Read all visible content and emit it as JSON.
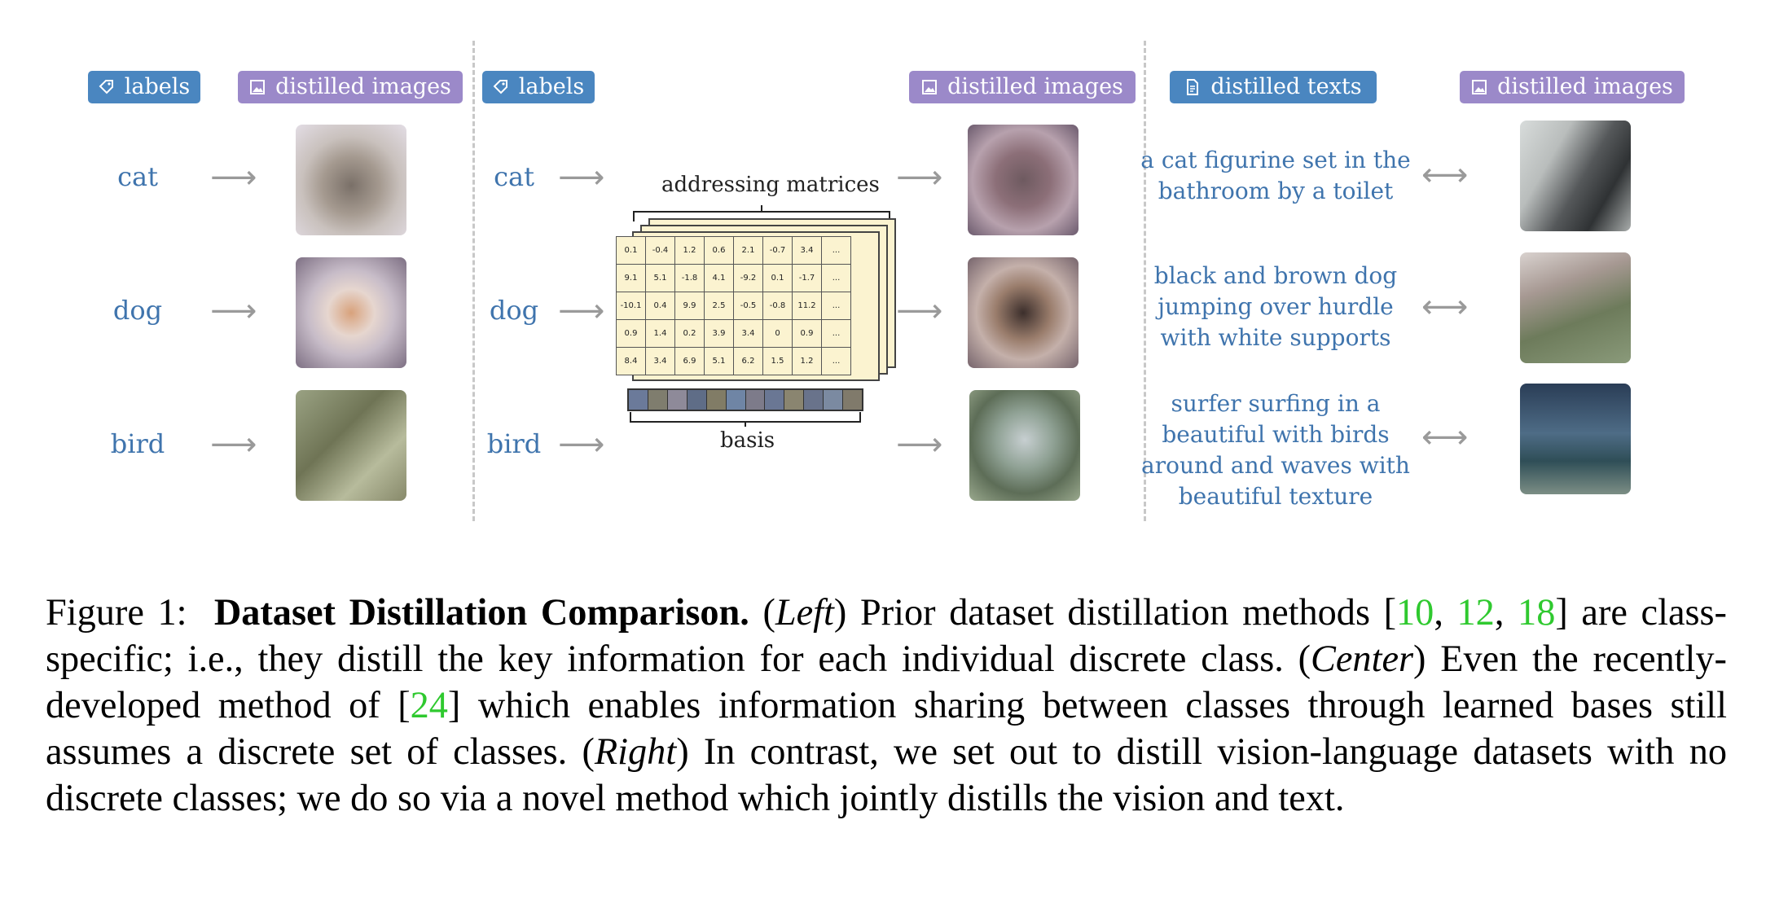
{
  "figure": {
    "left": {
      "labels_badge": "labels",
      "images_badge": "distilled images",
      "classes": [
        "cat",
        "dog",
        "bird"
      ]
    },
    "center": {
      "labels_badge": "labels",
      "images_badge": "distilled images",
      "classes": [
        "cat",
        "dog",
        "bird"
      ],
      "addressing_label": "addressing matrices",
      "basis_label": "basis",
      "matrix": [
        [
          "0.1",
          "-0.4",
          "1.2",
          "0.6",
          "2.1",
          "-0.7",
          "3.4",
          "..."
        ],
        [
          "9.1",
          "5.1",
          "-1.8",
          "4.1",
          "-9.2",
          "0.1",
          "-1.7",
          "..."
        ],
        [
          "-10.1",
          "0.4",
          "9.9",
          "2.5",
          "-0.5",
          "-0.8",
          "11.2",
          "..."
        ],
        [
          "0.9",
          "1.4",
          "0.2",
          "3.9",
          "3.4",
          "0",
          "0.9",
          "..."
        ],
        [
          "8.4",
          "3.4",
          "6.9",
          "5.1",
          "6.2",
          "1.5",
          "1.2",
          "..."
        ]
      ]
    },
    "right": {
      "texts_badge": "distilled texts",
      "images_badge": "distilled images",
      "texts": [
        [
          "a cat figurine set in the",
          "bathroom by a toilet"
        ],
        [
          "black and brown dog",
          "jumping over hurdle",
          "with white supports"
        ],
        [
          "surfer surfing in a",
          "beautiful with birds",
          "around and waves with",
          "beautiful texture"
        ]
      ]
    },
    "colors": {
      "blue_badge": "#4a86c0",
      "purple_badge": "#9b89c9",
      "class_text": "#3f74ad",
      "citation": "#2fc92f"
    }
  },
  "caption": {
    "prefix": "Figure 1:",
    "title": "Dataset Distillation Comparison.",
    "left_word": "Left",
    "part1": "Prior dataset distillation methods [",
    "c1": "10",
    "c2": "12",
    "c3": "18",
    "part2": "] are class-specific; i.e., they distill the key information for each individual discrete class. (",
    "center_word": "Center",
    "part3": ") Even the recently-developed method of [",
    "c4": "24",
    "part4": "] which enables information sharing between classes through learned bases still assumes a discrete set of classes. (",
    "right_word": "Right",
    "part5": ") In contrast, we set out to distill vision-language datasets with no discrete classes; we do so via a novel method which jointly distills the vision and text."
  }
}
